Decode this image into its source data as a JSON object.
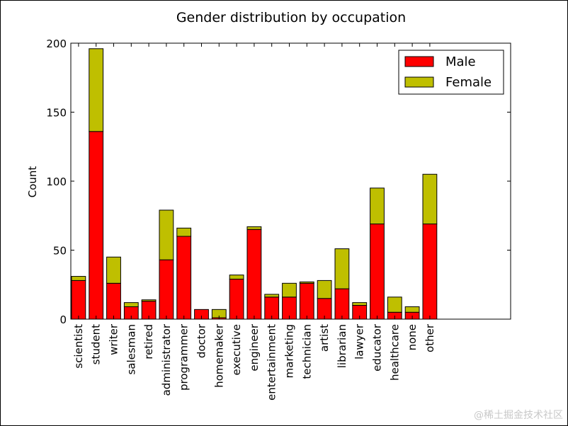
{
  "chart_data": {
    "type": "bar",
    "stacked": true,
    "title": "Gender distribution by occupation",
    "xlabel": "",
    "ylabel": "Count",
    "ylim": [
      0,
      200
    ],
    "yticks": [
      0,
      50,
      100,
      150,
      200
    ],
    "categories": [
      "scientist",
      "student",
      "writer",
      "salesman",
      "retired",
      "administrator",
      "programmer",
      "doctor",
      "homemaker",
      "executive",
      "engineer",
      "entertainment",
      "marketing",
      "technician",
      "artist",
      "librarian",
      "lawyer",
      "educator",
      "healthcare",
      "none",
      "other"
    ],
    "series": [
      {
        "name": "Male",
        "color": "#ff0000",
        "values": [
          28,
          136,
          26,
          9,
          13,
          43,
          60,
          7,
          1,
          29,
          65,
          16,
          16,
          26,
          15,
          22,
          10,
          69,
          5,
          5,
          69
        ]
      },
      {
        "name": "Female",
        "color": "#bfbf00",
        "values": [
          3,
          60,
          19,
          3,
          1,
          36,
          6,
          0,
          6,
          3,
          2,
          2,
          10,
          1,
          13,
          29,
          2,
          26,
          11,
          4,
          36
        ]
      }
    ],
    "legend": {
      "position": "top-right",
      "entries": [
        "Male",
        "Female"
      ]
    }
  },
  "watermark": "@稀土掘金技术社区"
}
